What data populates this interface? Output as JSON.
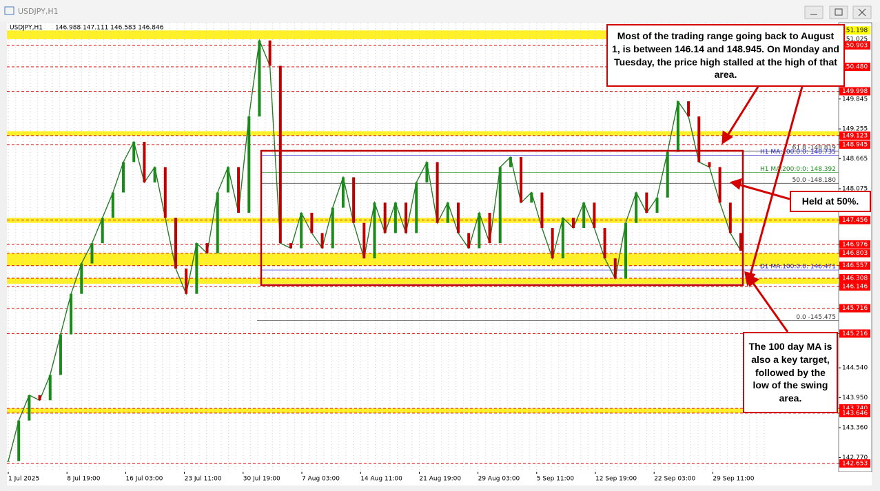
{
  "window": {
    "title": "USDJPY,H1"
  },
  "header": {
    "symbol": "USDJPY,H1",
    "ohlc": "146.988 147.111 146.583 146.846"
  },
  "chart": {
    "ylim": [
      142.49,
      151.35
    ],
    "price_ticks": [
      {
        "value": 151.198,
        "label": "151.198",
        "color": "#ffff00"
      },
      {
        "value": 151.025,
        "label": "151.025",
        "color": "none"
      },
      {
        "value": 150.903,
        "label": "150.903",
        "color": "#ff0000"
      },
      {
        "value": 150.48,
        "label": "150.480",
        "color": "#ff0000"
      },
      {
        "value": 149.998,
        "label": "149.998",
        "color": "#ff0000"
      },
      {
        "value": 149.845,
        "label": "149.845",
        "color": "none"
      },
      {
        "value": 149.255,
        "label": "149.255",
        "color": "none"
      },
      {
        "value": 149.123,
        "label": "149.123",
        "color": "#ff0000"
      },
      {
        "value": 148.945,
        "label": "148.945",
        "color": "#ff0000"
      },
      {
        "value": 148.665,
        "label": "148.665",
        "color": "none"
      },
      {
        "value": 148.075,
        "label": "148.075",
        "color": "none"
      },
      {
        "value": 147.456,
        "label": "147.456",
        "color": "#ff0000"
      },
      {
        "value": 146.976,
        "label": "146.976",
        "color": "#ff0000"
      },
      {
        "value": 146.803,
        "label": "146.803",
        "color": "#ff0000"
      },
      {
        "value": 146.557,
        "label": "146.557",
        "color": "#ff0000"
      },
      {
        "value": 146.308,
        "label": "146.308",
        "color": "#ff0000"
      },
      {
        "value": 146.146,
        "label": "146.146",
        "color": "#ff0000"
      },
      {
        "value": 145.716,
        "label": "145.716",
        "color": "#ff0000"
      },
      {
        "value": 145.216,
        "label": "145.216",
        "color": "#ff0000"
      },
      {
        "value": 144.54,
        "label": "144.540",
        "color": "none"
      },
      {
        "value": 143.95,
        "label": "143.950",
        "color": "none"
      },
      {
        "value": 143.74,
        "label": "143.740",
        "color": "#ff0000"
      },
      {
        "value": 143.646,
        "label": "143.646",
        "color": "#ff0000"
      },
      {
        "value": 143.36,
        "label": "143.360",
        "color": "none"
      },
      {
        "value": 142.77,
        "label": "142.770",
        "color": "none"
      },
      {
        "value": 142.653,
        "label": "142.653",
        "color": "#ff0000"
      }
    ],
    "dates": [
      "1 Jul 2025",
      "8 Jul 19:00",
      "16 Jul 03:00",
      "23 Jul 11:00",
      "30 Jul 19:00",
      "7 Aug 03:00",
      "14 Aug 11:00",
      "21 Aug 19:00",
      "29 Aug 03:00",
      "5 Sep 11:00",
      "12 Sep 19:00",
      "22 Sep 03:00",
      "29 Sep 11:00"
    ],
    "zones": [
      [
        151.025,
        151.198
      ],
      [
        149.123,
        149.21
      ],
      [
        147.4,
        147.5
      ],
      [
        146.557,
        146.803
      ],
      [
        146.2,
        146.308
      ],
      [
        143.646,
        143.74
      ]
    ],
    "line_labels": [
      {
        "value": 148.819,
        "label": "61.8 -148.819",
        "color": "#333333"
      },
      {
        "value": 148.735,
        "label": "H1 MA:100:0:0: 148.735",
        "color": "#1a1acc"
      },
      {
        "value": 148.392,
        "label": "H1 MA:200:0:0: 148.392",
        "color": "#1a8a1a"
      },
      {
        "value": 148.18,
        "label": "50.0 -148.180",
        "color": "#333333"
      },
      {
        "value": 146.471,
        "label": "D1 MA:100:0:0: 146.471",
        "color": "#1a1acc"
      },
      {
        "value": 145.475,
        "label": "0.0 -145.475",
        "color": "#333333"
      }
    ],
    "price_trace": [
      142.7,
      143.5,
      144,
      143.9,
      144.4,
      145.2,
      146,
      146.6,
      147,
      147.5,
      148,
      148.6,
      149,
      148.2,
      148.5,
      147.5,
      146.5,
      146,
      147,
      146.8,
      148,
      148.5,
      147.6,
      149.5,
      151,
      150.5,
      147,
      146.9,
      147.6,
      147.2,
      146.9,
      147.7,
      148.3,
      147.4,
      146.7,
      147.8,
      147.2,
      147.8,
      147.2,
      148.2,
      148.6,
      147.4,
      147.8,
      147.2,
      146.9,
      147.6,
      147,
      148.5,
      148.7,
      147.8,
      148,
      147.3,
      146.7,
      147.5,
      147.3,
      147.8,
      147.3,
      146.7,
      146.3,
      147.4,
      148,
      147.6,
      147.9,
      148.8,
      149.8,
      149.5,
      148.6,
      148.5,
      147.8,
      147.2,
      146.85
    ]
  },
  "annotations": [
    {
      "text": "Most of the trading range going back to August 1, is between 146.14 and 148.945. On Monday and Tuesday, the price high stalled at the high of that area."
    },
    {
      "text": "Held at 50%."
    },
    {
      "text": "The 100 day MA is also a key target, followed by the low of the swing area."
    }
  ]
}
